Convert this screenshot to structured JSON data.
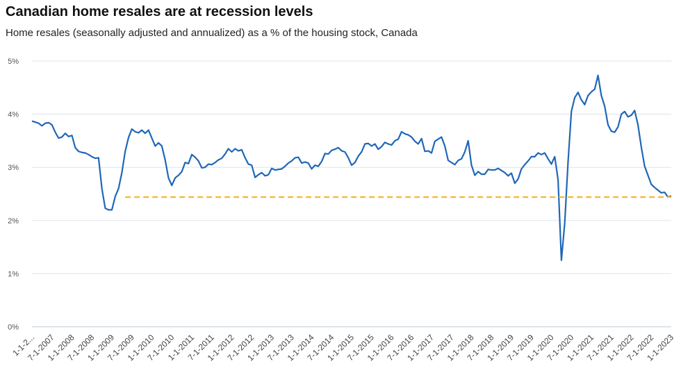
{
  "chart_data": {
    "type": "line",
    "title": "Canadian home resales are at recession levels",
    "subtitle": "Home resales (seasonally adjusted and annualized) as a % of the housing stock, Canada",
    "ylim": [
      0,
      5
    ],
    "y_ticks": [
      "0%",
      "1%",
      "2%",
      "3%",
      "4%",
      "5%"
    ],
    "x_tick_labels": [
      "1-1-2...",
      "7-1-2007",
      "1-1-2008",
      "7-1-2008",
      "1-1-2009",
      "7-1-2009",
      "1-1-2010",
      "7-1-2010",
      "1-1-2011",
      "7-1-2011",
      "1-1-2012",
      "7-1-2012",
      "1-1-2013",
      "7-1-2013",
      "1-1-2014",
      "7-1-2014",
      "1-1-2015",
      "7-1-2015",
      "1-1-2016",
      "7-1-2016",
      "1-1-2017",
      "7-1-2017",
      "1-1-2018",
      "7-1-2018",
      "1-1-2019",
      "7-1-2019",
      "1-1-2020",
      "7-1-2020",
      "1-1-2021",
      "7-1-2021",
      "1-1-2022",
      "7-1-2022",
      "1-1-2023"
    ],
    "grid": true,
    "series": [
      {
        "name": "",
        "color": "#1f67b8",
        "start": "2007-01",
        "frequency": "monthly",
        "values": [
          3.87,
          3.85,
          3.83,
          3.78,
          3.83,
          3.84,
          3.8,
          3.66,
          3.55,
          3.57,
          3.64,
          3.58,
          3.6,
          3.37,
          3.3,
          3.28,
          3.27,
          3.24,
          3.2,
          3.17,
          3.18,
          2.6,
          2.23,
          2.2,
          2.2,
          2.45,
          2.6,
          2.9,
          3.3,
          3.56,
          3.72,
          3.67,
          3.65,
          3.7,
          3.64,
          3.7,
          3.55,
          3.4,
          3.46,
          3.4,
          3.14,
          2.8,
          2.66,
          2.8,
          2.85,
          2.92,
          3.09,
          3.07,
          3.24,
          3.19,
          3.12,
          2.99,
          3.0,
          3.06,
          3.05,
          3.09,
          3.14,
          3.17,
          3.25,
          3.35,
          3.29,
          3.35,
          3.31,
          3.33,
          3.18,
          3.06,
          3.04,
          2.81,
          2.86,
          2.9,
          2.84,
          2.86,
          2.98,
          2.95,
          2.96,
          2.97,
          3.02,
          3.08,
          3.12,
          3.18,
          3.19,
          3.08,
          3.1,
          3.08,
          2.97,
          3.04,
          3.02,
          3.11,
          3.26,
          3.25,
          3.32,
          3.34,
          3.37,
          3.31,
          3.29,
          3.18,
          3.04,
          3.09,
          3.21,
          3.29,
          3.44,
          3.45,
          3.4,
          3.44,
          3.34,
          3.39,
          3.47,
          3.44,
          3.42,
          3.5,
          3.53,
          3.67,
          3.63,
          3.61,
          3.57,
          3.49,
          3.44,
          3.54,
          3.3,
          3.31,
          3.27,
          3.49,
          3.53,
          3.57,
          3.4,
          3.13,
          3.09,
          3.05,
          3.13,
          3.16,
          3.29,
          3.5,
          3.04,
          2.85,
          2.92,
          2.87,
          2.87,
          2.96,
          2.95,
          2.95,
          2.98,
          2.94,
          2.9,
          2.84,
          2.89,
          2.7,
          2.78,
          2.97,
          3.05,
          3.12,
          3.2,
          3.2,
          3.27,
          3.24,
          3.27,
          3.16,
          3.06,
          3.2,
          2.77,
          1.25,
          1.95,
          3.1,
          4.05,
          4.31,
          4.41,
          4.27,
          4.18,
          4.35,
          4.42,
          4.47,
          4.73,
          4.35,
          4.15,
          3.8,
          3.68,
          3.66,
          3.76,
          4.0,
          4.05,
          3.95,
          3.98,
          4.07,
          3.8,
          3.38,
          3.02,
          2.85,
          2.68,
          2.62,
          2.57,
          2.52,
          2.53,
          2.44,
          2.46
        ]
      },
      {
        "name": "",
        "color": "#f5b731",
        "style": "dashed",
        "start": "2009-05",
        "end": "2023-01",
        "value": 2.44
      }
    ]
  }
}
